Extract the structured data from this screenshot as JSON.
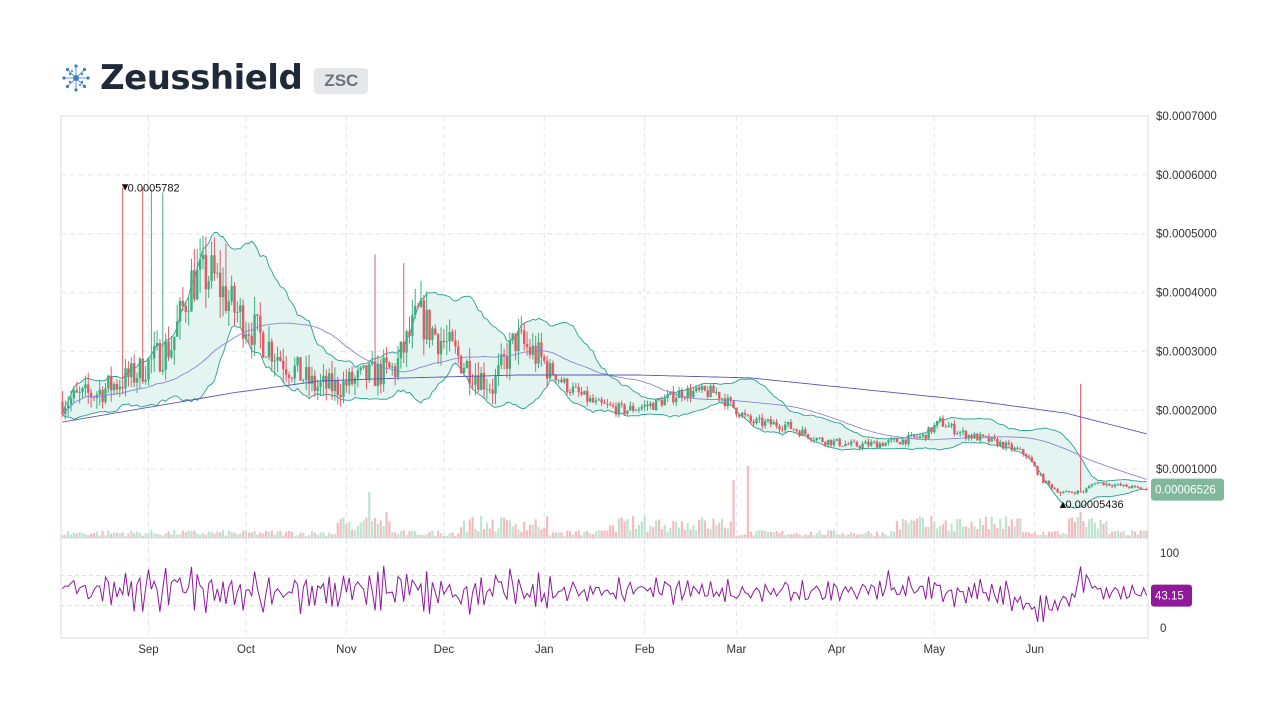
{
  "header": {
    "title": "Zeusshield",
    "ticker": "ZSC"
  },
  "colors": {
    "up": "#3fae7f",
    "down": "#e05b66",
    "band_fill": "#e3f4f1",
    "band_line": "#26a08c",
    "ma_short": "#8d84d6",
    "ma_long": "#5b57b8",
    "rsi": "#8e1a9a",
    "last_price_tag": "#7fb89b",
    "rsi_tag": "#8e1a9a"
  },
  "icons": {
    "logo": "zeusshield-logo-icon"
  },
  "chart_data": {
    "type": "candlestick",
    "price_axis": {
      "ticks": [
        "$0.0007000",
        "$0.0006000",
        "$0.0005000",
        "$0.0004000",
        "$0.0003000",
        "$0.0002000",
        "$0.0001000"
      ],
      "tick_values": [
        0.0007,
        0.0006,
        0.0005,
        0.0004,
        0.0003,
        0.0002,
        0.0001
      ],
      "ylim": [
        0.0,
        0.0007
      ]
    },
    "x_axis": {
      "labels": [
        "Sep",
        "Oct",
        "Nov",
        "Dec",
        "Jan",
        "Feb",
        "Mar",
        "Apr",
        "May",
        "Jun"
      ]
    },
    "annotations": {
      "high_label": "0.0005782",
      "high_value": 0.0005782,
      "low_label": "0.00005436",
      "low_value": 5.436e-05
    },
    "last_price": {
      "label": "0.00006526",
      "value": 6.526e-05
    },
    "rsi": {
      "ticks": [
        "100",
        "0"
      ],
      "tick_values": [
        100,
        0
      ],
      "bands": [
        70,
        30
      ],
      "last_label": "43.15",
      "last_value": 43.15
    },
    "price_path": [
      [
        0,
        0.000215
      ],
      [
        12,
        0.00023
      ],
      [
        25,
        0.00026
      ],
      [
        38,
        0.00031
      ],
      [
        45,
        0.00042
      ],
      [
        52,
        0.00043
      ],
      [
        60,
        0.00037
      ],
      [
        68,
        0.00033
      ],
      [
        78,
        0.00028
      ],
      [
        88,
        0.00024
      ],
      [
        96,
        0.00024
      ],
      [
        108,
        0.00026
      ],
      [
        116,
        0.00027
      ],
      [
        124,
        0.00036
      ],
      [
        132,
        0.00032
      ],
      [
        140,
        0.00028
      ],
      [
        150,
        0.00024
      ],
      [
        158,
        0.00032
      ],
      [
        166,
        0.00029
      ],
      [
        176,
        0.00024
      ],
      [
        186,
        0.00021
      ],
      [
        196,
        0.0002
      ],
      [
        206,
        0.00021
      ],
      [
        216,
        0.00023
      ],
      [
        228,
        0.00023
      ],
      [
        240,
        0.00018
      ],
      [
        252,
        0.000175
      ],
      [
        264,
        0.00015
      ],
      [
        276,
        0.00014
      ],
      [
        288,
        0.000145
      ],
      [
        300,
        0.000155
      ],
      [
        306,
        0.00018
      ],
      [
        314,
        0.00016
      ],
      [
        326,
        0.000145
      ],
      [
        336,
        0.000125
      ],
      [
        342,
        8e-05
      ],
      [
        348,
        6e-05
      ],
      [
        356,
        6.2e-05
      ],
      [
        360,
        7.8e-05
      ],
      [
        364,
        7.5e-05
      ],
      [
        372,
        7e-05
      ],
      [
        378,
        6.526e-05
      ]
    ],
    "long_ma_path": [
      [
        0,
        0.00018
      ],
      [
        30,
        0.000205
      ],
      [
        60,
        0.00023
      ],
      [
        90,
        0.00025
      ],
      [
        120,
        0.000255
      ],
      [
        160,
        0.00026
      ],
      [
        200,
        0.00026
      ],
      [
        240,
        0.000255
      ],
      [
        280,
        0.000235
      ],
      [
        320,
        0.000215
      ],
      [
        350,
        0.000195
      ],
      [
        378,
        0.00016
      ]
    ],
    "spikes": [
      [
        21,
        0.0005782
      ],
      [
        28,
        0.000578
      ],
      [
        31,
        0.000575
      ],
      [
        35,
        0.00057
      ],
      [
        57,
        0.000483
      ],
      [
        109,
        0.000465
      ],
      [
        119,
        0.00045
      ],
      [
        158,
        0.00032
      ],
      [
        355,
        0.000245
      ]
    ]
  }
}
